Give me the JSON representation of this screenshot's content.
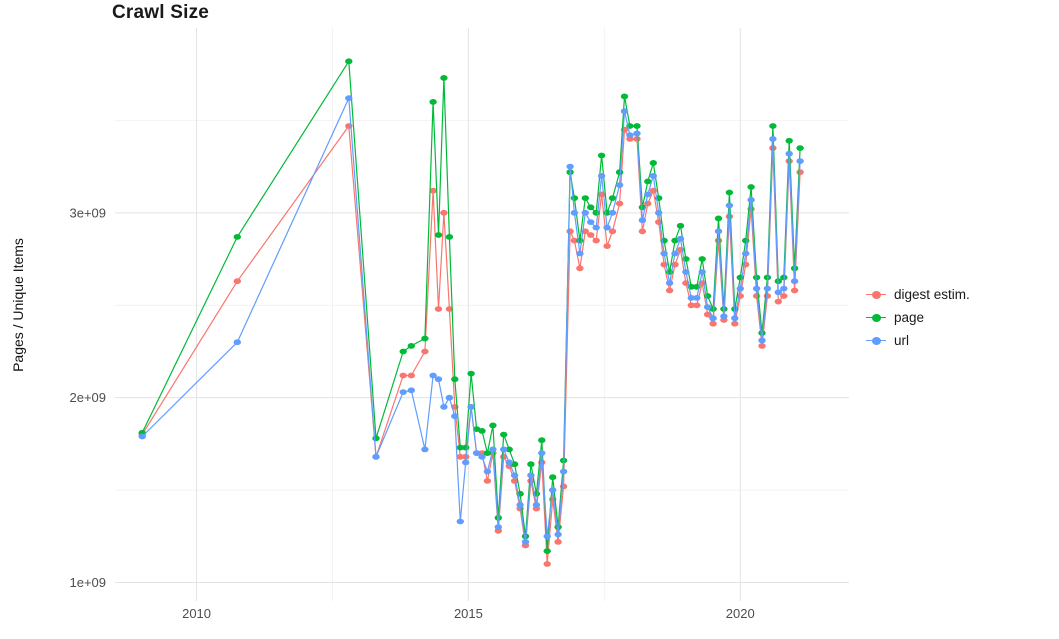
{
  "chart_data": {
    "type": "line",
    "title": "Crawl Size",
    "xlabel": "",
    "ylabel": "Pages / Unique Items",
    "grid": true,
    "legend_position": "right",
    "xlim": [
      2008.5,
      2022.0
    ],
    "ylim": [
      900000000.0,
      4000000000.0
    ],
    "x_ticks": [
      {
        "value": 2010,
        "label": "2010"
      },
      {
        "value": 2015,
        "label": "2015"
      },
      {
        "value": 2020,
        "label": "2020"
      }
    ],
    "y_ticks": [
      {
        "value": 1000000000.0,
        "label": "1e+09"
      },
      {
        "value": 2000000000.0,
        "label": "2e+09"
      },
      {
        "value": 3000000000.0,
        "label": "3e+09"
      }
    ],
    "x_unit": "year",
    "x": [
      2009.0,
      2010.75,
      2012.8,
      2013.3,
      2013.8,
      2013.95,
      2014.2,
      2014.35,
      2014.45,
      2014.55,
      2014.65,
      2014.75,
      2014.85,
      2014.95,
      2015.05,
      2015.15,
      2015.25,
      2015.35,
      2015.45,
      2015.55,
      2015.65,
      2015.75,
      2015.85,
      2015.95,
      2016.05,
      2016.15,
      2016.25,
      2016.35,
      2016.45,
      2016.55,
      2016.65,
      2016.75,
      2016.87,
      2016.95,
      2017.05,
      2017.15,
      2017.25,
      2017.35,
      2017.45,
      2017.55,
      2017.65,
      2017.78,
      2017.87,
      2017.97,
      2018.1,
      2018.2,
      2018.3,
      2018.4,
      2018.5,
      2018.6,
      2018.7,
      2018.8,
      2018.9,
      2019.0,
      2019.1,
      2019.2,
      2019.3,
      2019.4,
      2019.5,
      2019.6,
      2019.7,
      2019.8,
      2019.9,
      2020.0,
      2020.1,
      2020.2,
      2020.3,
      2020.4,
      2020.5,
      2020.6,
      2020.7,
      2020.8,
      2020.9,
      2021.0,
      2021.1
    ],
    "series": [
      {
        "name": "digest estim.",
        "color": "#F8766D",
        "values": [
          1800000000.0,
          2630000000.0,
          3470000000.0,
          1680000000.0,
          2120000000.0,
          2120000000.0,
          2250000000.0,
          3120000000.0,
          2480000000.0,
          3000000000.0,
          2480000000.0,
          1950000000.0,
          1680000000.0,
          1680000000.0,
          1950000000.0,
          1700000000.0,
          1700000000.0,
          1550000000.0,
          1700000000.0,
          1280000000.0,
          1680000000.0,
          1630000000.0,
          1550000000.0,
          1400000000.0,
          1200000000.0,
          1550000000.0,
          1400000000.0,
          1650000000.0,
          1100000000.0,
          1450000000.0,
          1220000000.0,
          1520000000.0,
          2900000000.0,
          2850000000.0,
          2700000000.0,
          2900000000.0,
          2880000000.0,
          2850000000.0,
          3100000000.0,
          2820000000.0,
          2900000000.0,
          3050000000.0,
          3450000000.0,
          3400000000.0,
          3400000000.0,
          2900000000.0,
          3050000000.0,
          3120000000.0,
          2950000000.0,
          2720000000.0,
          2580000000.0,
          2720000000.0,
          2800000000.0,
          2620000000.0,
          2500000000.0,
          2500000000.0,
          2620000000.0,
          2450000000.0,
          2400000000.0,
          2850000000.0,
          2420000000.0,
          2980000000.0,
          2400000000.0,
          2550000000.0,
          2720000000.0,
          3020000000.0,
          2550000000.0,
          2280000000.0,
          2550000000.0,
          3350000000.0,
          2520000000.0,
          2550000000.0,
          3280000000.0,
          2580000000.0,
          3220000000.0
        ]
      },
      {
        "name": "page",
        "color": "#00BA38",
        "values": [
          1810000000.0,
          2870000000.0,
          3820000000.0,
          1780000000.0,
          2250000000.0,
          2280000000.0,
          2320000000.0,
          3600000000.0,
          2880000000.0,
          3730000000.0,
          2870000000.0,
          2100000000.0,
          1730000000.0,
          1730000000.0,
          2130000000.0,
          1830000000.0,
          1820000000.0,
          1700000000.0,
          1850000000.0,
          1350000000.0,
          1800000000.0,
          1720000000.0,
          1640000000.0,
          1480000000.0,
          1250000000.0,
          1640000000.0,
          1480000000.0,
          1770000000.0,
          1170000000.0,
          1570000000.0,
          1300000000.0,
          1660000000.0,
          3220000000.0,
          3080000000.0,
          2850000000.0,
          3080000000.0,
          3030000000.0,
          3000000000.0,
          3310000000.0,
          3000000000.0,
          3080000000.0,
          3220000000.0,
          3630000000.0,
          3470000000.0,
          3470000000.0,
          3030000000.0,
          3170000000.0,
          3270000000.0,
          3080000000.0,
          2850000000.0,
          2680000000.0,
          2850000000.0,
          2930000000.0,
          2750000000.0,
          2600000000.0,
          2600000000.0,
          2750000000.0,
          2550000000.0,
          2480000000.0,
          2970000000.0,
          2480000000.0,
          3110000000.0,
          2480000000.0,
          2650000000.0,
          2850000000.0,
          3140000000.0,
          2650000000.0,
          2350000000.0,
          2650000000.0,
          3470000000.0,
          2630000000.0,
          2650000000.0,
          3390000000.0,
          2700000000.0,
          3350000000.0
        ]
      },
      {
        "name": "url",
        "color": "#619CFF",
        "values": [
          1790000000.0,
          2300000000.0,
          3620000000.0,
          1680000000.0,
          2030000000.0,
          2040000000.0,
          1720000000.0,
          2120000000.0,
          2100000000.0,
          1950000000.0,
          2000000000.0,
          1900000000.0,
          1330000000.0,
          1650000000.0,
          1950000000.0,
          1700000000.0,
          1680000000.0,
          1600000000.0,
          1720000000.0,
          1300000000.0,
          1720000000.0,
          1650000000.0,
          1580000000.0,
          1420000000.0,
          1220000000.0,
          1580000000.0,
          1420000000.0,
          1700000000.0,
          1250000000.0,
          1500000000.0,
          1260000000.0,
          1600000000.0,
          3250000000.0,
          3000000000.0,
          2780000000.0,
          3000000000.0,
          2950000000.0,
          2920000000.0,
          3200000000.0,
          2920000000.0,
          3000000000.0,
          3150000000.0,
          3550000000.0,
          3420000000.0,
          3430000000.0,
          2960000000.0,
          3100000000.0,
          3200000000.0,
          3000000000.0,
          2780000000.0,
          2620000000.0,
          2780000000.0,
          2860000000.0,
          2680000000.0,
          2540000000.0,
          2540000000.0,
          2680000000.0,
          2490000000.0,
          2430000000.0,
          2900000000.0,
          2440000000.0,
          3040000000.0,
          2430000000.0,
          2590000000.0,
          2780000000.0,
          3070000000.0,
          2590000000.0,
          2310000000.0,
          2590000000.0,
          3400000000.0,
          2570000000.0,
          2590000000.0,
          3320000000.0,
          2630000000.0,
          3280000000.0
        ]
      }
    ]
  },
  "legend": {
    "items": [
      {
        "label": "digest estim.",
        "color": "#F8766D"
      },
      {
        "label": "page",
        "color": "#00BA38"
      },
      {
        "label": "url",
        "color": "#619CFF"
      }
    ]
  },
  "style": {
    "grid_major_color": "#e3e3e3",
    "grid_minor_color": "#f2f2f2",
    "background": "#ffffff"
  }
}
